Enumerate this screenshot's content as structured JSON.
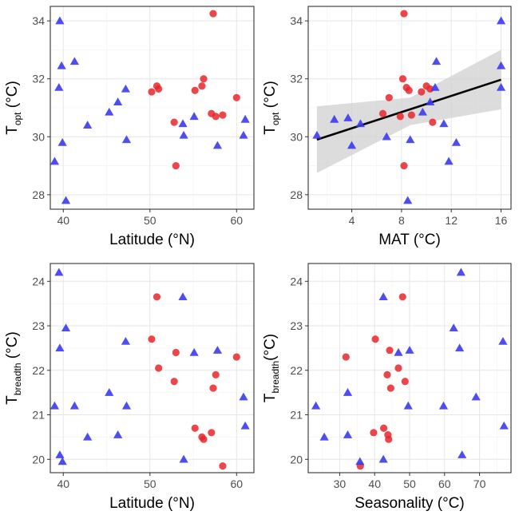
{
  "colors": {
    "site_a": "#e8272b",
    "site_b": "#3a3aee",
    "fit_line": "#000000",
    "ci_band": "#d0d0d0"
  },
  "chart_data": [
    {
      "type": "scatter",
      "xlabel": "Latitude (°N)",
      "ylabel": {
        "main": "T",
        "sub": "opt",
        "unit": " (°C)"
      },
      "xlim": [
        38.5,
        62
      ],
      "ylim": [
        27.5,
        34.5
      ],
      "xticks": [
        40,
        50,
        60
      ],
      "yticks": [
        28,
        30,
        32,
        34
      ],
      "grid": true,
      "legend": "none",
      "series": [
        {
          "marker": "circle",
          "color_key": "site_a",
          "points": [
            [
              50.2,
              31.55
            ],
            [
              50.8,
              31.75
            ],
            [
              51.0,
              31.65
            ],
            [
              52.8,
              30.5
            ],
            [
              53.0,
              29.0
            ],
            [
              55.2,
              31.6
            ],
            [
              56.0,
              31.75
            ],
            [
              56.2,
              32.0
            ],
            [
              57.1,
              30.8
            ],
            [
              57.3,
              34.25
            ],
            [
              57.6,
              30.7
            ],
            [
              58.4,
              30.75
            ],
            [
              60.0,
              31.35
            ]
          ]
        },
        {
          "marker": "triangle",
          "color_key": "site_b",
          "points": [
            [
              39.0,
              29.15
            ],
            [
              39.5,
              31.7
            ],
            [
              39.6,
              34.0
            ],
            [
              39.8,
              32.45
            ],
            [
              39.9,
              29.8
            ],
            [
              40.3,
              27.8
            ],
            [
              41.3,
              32.6
            ],
            [
              42.8,
              30.4
            ],
            [
              45.3,
              30.85
            ],
            [
              46.3,
              31.2
            ],
            [
              47.2,
              31.65
            ],
            [
              47.3,
              29.9
            ],
            [
              53.8,
              30.45
            ],
            [
              53.9,
              30.05
            ],
            [
              55.1,
              30.7
            ],
            [
              57.8,
              29.7
            ],
            [
              60.8,
              30.05
            ],
            [
              61.0,
              30.6
            ]
          ]
        }
      ]
    },
    {
      "type": "scatter",
      "xlabel": "MAT (°C)",
      "ylabel": {
        "main": "T",
        "sub": "opt",
        "unit": " (°C)"
      },
      "xlim": [
        0.5,
        16.8
      ],
      "ylim": [
        27.5,
        34.5
      ],
      "xticks": [
        4,
        8,
        12,
        16
      ],
      "yticks": [
        28,
        30,
        32,
        34
      ],
      "grid": true,
      "legend": "none",
      "fit": {
        "x": [
          1.2,
          16.0
        ],
        "y": [
          29.9,
          31.97
        ]
      },
      "ci_band": {
        "x": [
          1.2,
          8.7,
          16.0
        ],
        "upper": [
          31.05,
          31.35,
          33.0
        ],
        "lower": [
          28.75,
          30.4,
          30.95
        ]
      },
      "series": [
        {
          "marker": "circle",
          "color_key": "site_a",
          "points": [
            [
              6.5,
              30.8
            ],
            [
              7.0,
              31.35
            ],
            [
              7.9,
              30.7
            ],
            [
              8.1,
              32.0
            ],
            [
              8.2,
              29.0
            ],
            [
              8.2,
              34.25
            ],
            [
              8.4,
              31.7
            ],
            [
              8.6,
              31.6
            ],
            [
              8.8,
              30.75
            ],
            [
              9.6,
              31.55
            ],
            [
              10.0,
              31.75
            ],
            [
              10.3,
              31.65
            ],
            [
              10.5,
              30.5
            ]
          ]
        },
        {
          "marker": "triangle",
          "color_key": "site_b",
          "points": [
            [
              1.2,
              30.05
            ],
            [
              2.6,
              30.6
            ],
            [
              3.7,
              30.65
            ],
            [
              4.0,
              29.7
            ],
            [
              4.7,
              30.45
            ],
            [
              6.8,
              30.0
            ],
            [
              8.5,
              27.8
            ],
            [
              8.7,
              29.9
            ],
            [
              9.7,
              30.85
            ],
            [
              10.3,
              31.2
            ],
            [
              10.7,
              31.7
            ],
            [
              10.8,
              32.6
            ],
            [
              11.4,
              30.45
            ],
            [
              11.8,
              29.15
            ],
            [
              12.4,
              29.8
            ],
            [
              16.0,
              34.0
            ],
            [
              16.0,
              32.45
            ],
            [
              16.0,
              31.7
            ]
          ]
        }
      ]
    },
    {
      "type": "scatter",
      "xlabel": "Latitude (°N)",
      "ylabel": {
        "main": "T",
        "sub": "breadth",
        "unit": " (°C)"
      },
      "xlim": [
        38.5,
        62
      ],
      "ylim": [
        19.7,
        24.4
      ],
      "xticks": [
        40,
        50,
        60
      ],
      "yticks": [
        20,
        21,
        22,
        23,
        24
      ],
      "grid": true,
      "legend": "none",
      "series": [
        {
          "marker": "circle",
          "color_key": "site_a",
          "points": [
            [
              50.2,
              22.7
            ],
            [
              50.8,
              23.65
            ],
            [
              51.0,
              22.05
            ],
            [
              52.8,
              21.75
            ],
            [
              53.0,
              22.4
            ],
            [
              55.2,
              20.7
            ],
            [
              56.0,
              20.5
            ],
            [
              56.2,
              20.45
            ],
            [
              57.1,
              20.6
            ],
            [
              57.3,
              21.6
            ],
            [
              57.6,
              21.9
            ],
            [
              58.4,
              19.85
            ],
            [
              60.0,
              22.3
            ]
          ]
        },
        {
          "marker": "triangle",
          "color_key": "site_b",
          "points": [
            [
              39.0,
              21.2
            ],
            [
              39.5,
              24.2
            ],
            [
              39.6,
              22.5
            ],
            [
              39.6,
              20.1
            ],
            [
              39.9,
              19.95
            ],
            [
              40.3,
              22.95
            ],
            [
              41.3,
              21.2
            ],
            [
              42.8,
              20.5
            ],
            [
              45.3,
              21.5
            ],
            [
              46.3,
              20.55
            ],
            [
              47.2,
              22.65
            ],
            [
              47.3,
              21.2
            ],
            [
              53.8,
              23.65
            ],
            [
              53.9,
              20.0
            ],
            [
              55.1,
              22.4
            ],
            [
              57.8,
              22.45
            ],
            [
              60.8,
              21.4
            ],
            [
              61.0,
              20.75
            ]
          ]
        }
      ]
    },
    {
      "type": "scatter",
      "xlabel": "Seasonality (°C)",
      "ylabel": {
        "main": "T",
        "sub": "breadth",
        "unit": "(°C)"
      },
      "xlim": [
        21,
        79
      ],
      "ylim": [
        19.7,
        24.4
      ],
      "xticks": [
        30,
        40,
        50,
        60,
        70
      ],
      "yticks": [
        20,
        21,
        22,
        23,
        24
      ],
      "grid": true,
      "legend": "none",
      "series": [
        {
          "marker": "circle",
          "color_key": "site_a",
          "points": [
            [
              31.8,
              22.3
            ],
            [
              35.9,
              19.85
            ],
            [
              39.7,
              20.6
            ],
            [
              40.2,
              22.7
            ],
            [
              42.6,
              20.7
            ],
            [
              43.6,
              21.9
            ],
            [
              43.8,
              20.55
            ],
            [
              44.0,
              20.45
            ],
            [
              44.3,
              22.45
            ],
            [
              44.6,
              21.6
            ],
            [
              46.8,
              22.05
            ],
            [
              48.0,
              23.65
            ],
            [
              48.7,
              21.75
            ]
          ]
        },
        {
          "marker": "triangle",
          "color_key": "site_b",
          "points": [
            [
              23.2,
              21.2
            ],
            [
              25.6,
              20.5
            ],
            [
              32.3,
              21.5
            ],
            [
              32.3,
              20.55
            ],
            [
              35.8,
              19.95
            ],
            [
              42.5,
              23.65
            ],
            [
              42.5,
              20.0
            ],
            [
              46.8,
              22.4
            ],
            [
              49.6,
              21.2
            ],
            [
              50.0,
              22.45
            ],
            [
              59.7,
              21.2
            ],
            [
              62.6,
              22.95
            ],
            [
              64.3,
              22.5
            ],
            [
              64.7,
              24.2
            ],
            [
              65.0,
              20.1
            ],
            [
              69.0,
              21.4
            ],
            [
              76.7,
              22.65
            ],
            [
              77.0,
              20.75
            ]
          ]
        }
      ]
    }
  ]
}
